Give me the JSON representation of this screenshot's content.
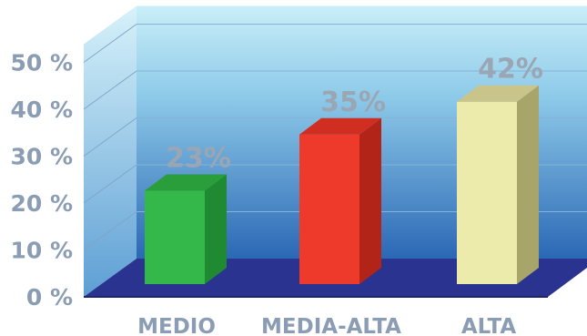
{
  "chart_data": {
    "type": "bar",
    "categories": [
      "MEDIO",
      "MEDIA-ALTA",
      "ALTA"
    ],
    "values": [
      23,
      35,
      42
    ],
    "data_labels": [
      "23%",
      "35%",
      "42%"
    ],
    "yticks": [
      "0 %",
      "10 %",
      "20 %",
      "30 %",
      "40 %",
      "50 %"
    ],
    "ylim": [
      0,
      50
    ],
    "grid": true,
    "colors": {
      "bars": [
        {
          "front": "#35b84a",
          "side": "#1f8a31",
          "top": "#2a9e3a"
        },
        {
          "front": "#ee3a2a",
          "side": "#b32418",
          "top": "#cf2e20"
        },
        {
          "front": "#ecebab",
          "side": "#a8a56a",
          "top": "#c9c58a"
        }
      ],
      "floor": "#2a3490",
      "wall_top": "#c9eef8",
      "wall_bottom": "#2b68b5",
      "text": "#8b9db4"
    }
  }
}
